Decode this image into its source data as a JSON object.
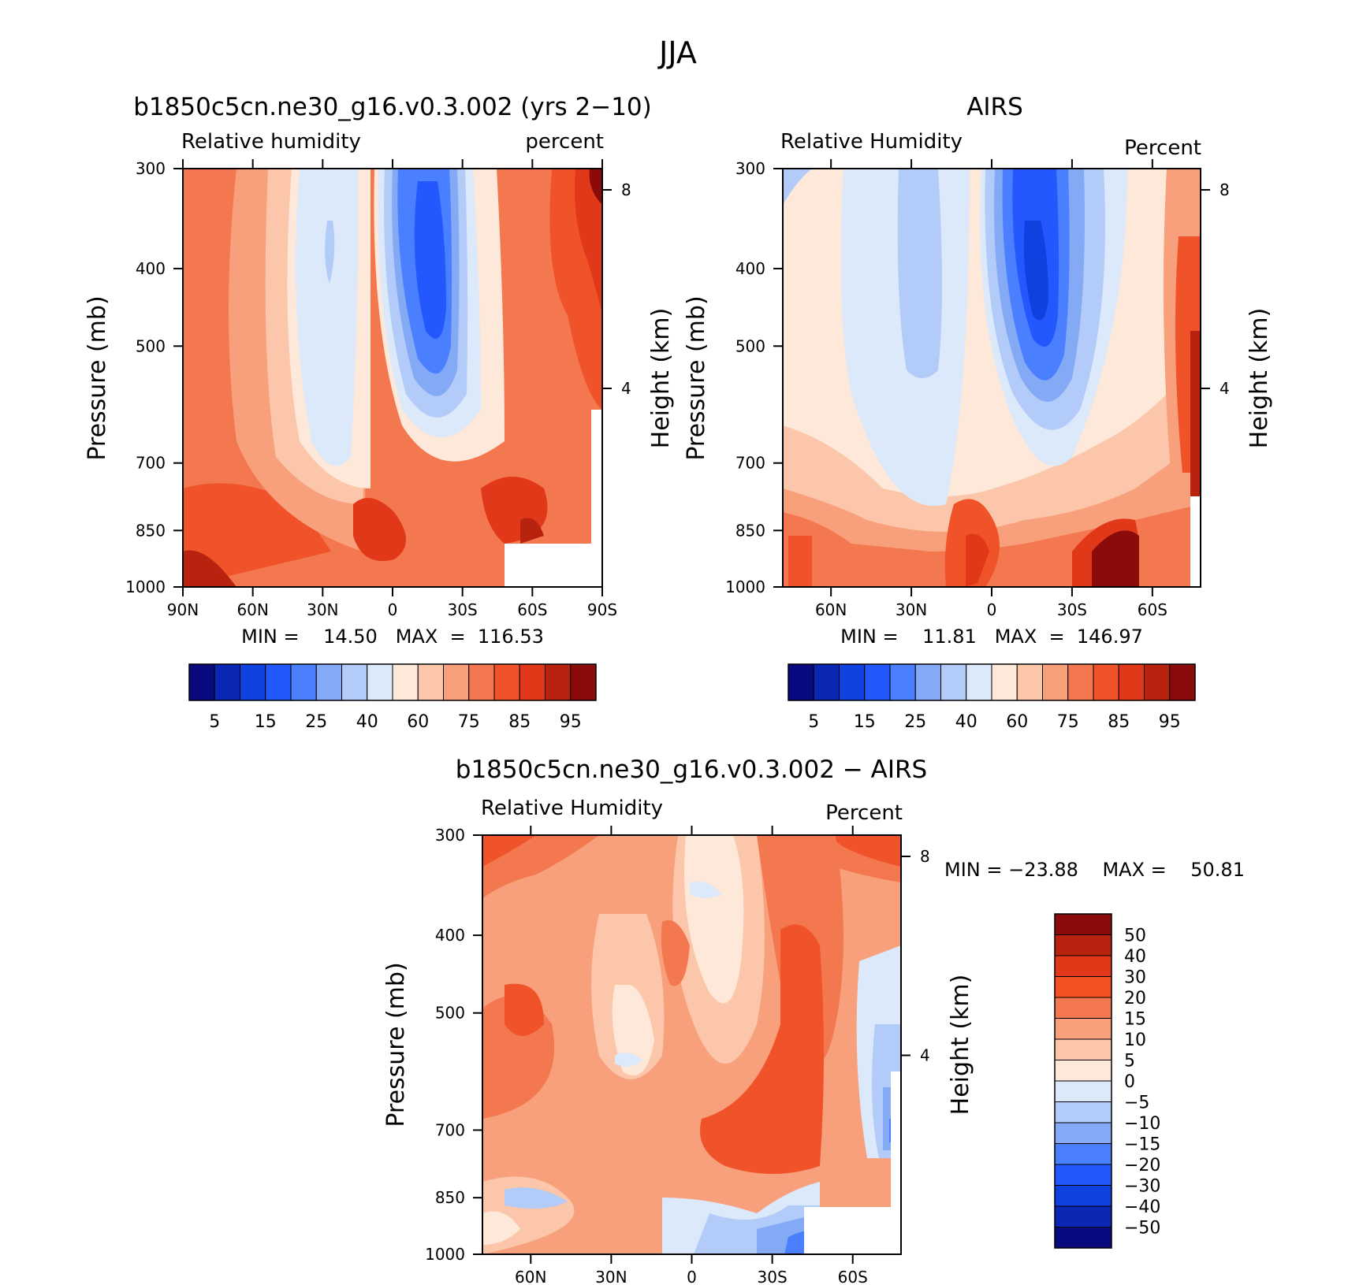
{
  "figure": {
    "title": "JJA"
  },
  "chart_data": [
    {
      "type": "heatmap",
      "id": "model",
      "title": "b1850c5cn.ne30_g16.v0.3.002 (yrs 2−10)",
      "left_string": "Relative humidity",
      "right_string": "percent",
      "ylabel": "Pressure (mb)",
      "y2label": "Height (km)",
      "x_ticks": [
        "90N",
        "60N",
        "30N",
        "0",
        "30S",
        "60S",
        "90S"
      ],
      "y_ticks": [
        "300",
        "400",
        "500",
        "700",
        "850",
        "1000"
      ],
      "y2_ticks": [
        "8",
        "4"
      ],
      "min_label": "MIN =    14.50   MAX  =  116.53",
      "min": 14.5,
      "max": 116.53,
      "colorbar_labels": [
        "5",
        "15",
        "25",
        "40",
        "60",
        "75",
        "85",
        "95"
      ]
    },
    {
      "type": "heatmap",
      "id": "obs",
      "title": "AIRS",
      "left_string": "Relative Humidity",
      "right_string": "Percent",
      "ylabel": "Pressure (mb)",
      "y2label": "Height (km)",
      "x_ticks": [
        "60N",
        "30N",
        "0",
        "30S",
        "60S"
      ],
      "y_ticks": [
        "300",
        "400",
        "500",
        "700",
        "850",
        "1000"
      ],
      "y2_ticks": [
        "8",
        "4"
      ],
      "min_label": "MIN =    11.81   MAX  =  146.97",
      "min": 11.81,
      "max": 146.97,
      "colorbar_labels": [
        "5",
        "15",
        "25",
        "40",
        "60",
        "75",
        "85",
        "95"
      ]
    },
    {
      "type": "heatmap",
      "id": "diff",
      "title": "b1850c5cn.ne30_g16.v0.3.002 − AIRS",
      "left_string": "Relative Humidity",
      "right_string": "Percent",
      "ylabel": "Pressure (mb)",
      "y2label": "Height (km)",
      "x_ticks": [
        "60N",
        "30N",
        "0",
        "30S",
        "60S"
      ],
      "y_ticks": [
        "300",
        "400",
        "500",
        "700",
        "850",
        "1000"
      ],
      "y2_ticks": [
        "8",
        "4"
      ],
      "min_label": "MIN = −23.88    MAX =    50.81",
      "min": -23.88,
      "max": 50.81,
      "colorbar_labels": [
        "50",
        "40",
        "30",
        "20",
        "15",
        "10",
        "5",
        "0",
        "−5",
        "−10",
        "−15",
        "−20",
        "−30",
        "−40",
        "−50"
      ]
    }
  ],
  "colors": {
    "abs_scale": [
      "#0a0a80",
      "#0a28b4",
      "#0f41e1",
      "#2358ff",
      "#4a80ff",
      "#85aaf5",
      "#b3cbf8",
      "#dbe9fb",
      "#fde8d9",
      "#fbc6a9",
      "#f8a07c",
      "#f3784f",
      "#f0532a",
      "#e03818",
      "#b82310",
      "#8b0a0a"
    ],
    "diff_scale": [
      "#8b0a0a",
      "#b82310",
      "#e03818",
      "#f55125",
      "#f3784f",
      "#f8a07c",
      "#fbc6a9",
      "#fde8d9",
      "#dbe9fb",
      "#b3cbf8",
      "#85aaf5",
      "#4a80ff",
      "#2358ff",
      "#0f41e1",
      "#0a28b4",
      "#0a0a80"
    ]
  }
}
